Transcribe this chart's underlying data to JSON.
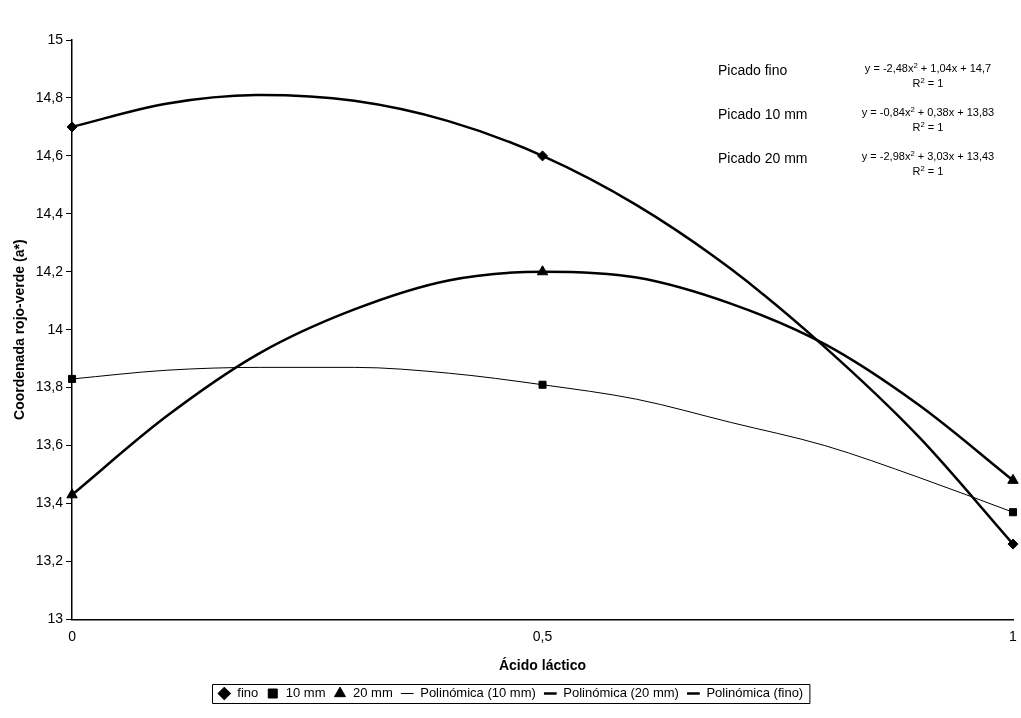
{
  "chart_data": {
    "type": "scatter",
    "xlabel": "Ácido láctico",
    "ylabel": "Coordenada rojo-verde (a*)",
    "xlim": [
      0,
      1
    ],
    "xticks": [
      {
        "value": 0,
        "label": "0"
      },
      {
        "value": 0.5,
        "label": "0,5"
      },
      {
        "value": 1,
        "label": "1"
      }
    ],
    "ylim": [
      13,
      15
    ],
    "yticks": [
      {
        "value": 13,
        "label": "13"
      },
      {
        "value": 13.2,
        "label": "13,2"
      },
      {
        "value": 13.4,
        "label": "13,4"
      },
      {
        "value": 13.6,
        "label": "13,6"
      },
      {
        "value": 13.8,
        "label": "13,8"
      },
      {
        "value": 14,
        "label": "14"
      },
      {
        "value": 14.2,
        "label": "14,2"
      },
      {
        "value": 14.4,
        "label": "14,4"
      },
      {
        "value": 14.6,
        "label": "14,6"
      },
      {
        "value": 14.8,
        "label": "14,8"
      },
      {
        "value": 15,
        "label": "15"
      }
    ],
    "grid": false,
    "legend": "bottom",
    "x": [
      0,
      0.5,
      1
    ],
    "series": [
      {
        "name": "fino",
        "marker": "diamond",
        "color": "#000000",
        "values": [
          14.7,
          14.6,
          13.26
        ]
      },
      {
        "name": "10 mm",
        "marker": "square",
        "color": "#000000",
        "values": [
          13.83,
          13.81,
          13.37
        ]
      },
      {
        "name": "20 mm",
        "marker": "triangle",
        "color": "#000000",
        "values": [
          13.43,
          14.2,
          13.48
        ]
      },
      {
        "name": "Polinómica (10 mm)",
        "type": "line",
        "marker": "none",
        "color": "#000000",
        "x": [
          0,
          0.1,
          0.2,
          0.3,
          0.4,
          0.5,
          0.6,
          0.7,
          0.8,
          0.9,
          1
        ],
        "values": [
          13.83,
          13.86,
          13.87,
          13.87,
          13.85,
          13.81,
          13.76,
          13.68,
          13.6,
          13.49,
          13.37
        ]
      },
      {
        "name": "Polinómica (20 mm)",
        "type": "line",
        "marker": "none",
        "color": "#000000",
        "x": [
          0,
          0.1,
          0.2,
          0.3,
          0.4,
          0.5,
          0.6,
          0.7,
          0.8,
          0.9,
          1
        ],
        "values": [
          13.43,
          13.7,
          13.92,
          14.07,
          14.17,
          14.2,
          14.18,
          14.09,
          13.95,
          13.74,
          13.48
        ]
      },
      {
        "name": "Polinómica (fino)",
        "type": "line",
        "marker": "none",
        "color": "#000000",
        "x": [
          0,
          0.1,
          0.2,
          0.3,
          0.4,
          0.5,
          0.6,
          0.7,
          0.8,
          0.9,
          1
        ],
        "values": [
          14.7,
          14.78,
          14.81,
          14.79,
          14.72,
          14.6,
          14.43,
          14.21,
          13.94,
          13.63,
          13.26
        ]
      }
    ],
    "annotations": [
      "Picado fino",
      "y = -2,48x$^{2}$ + 1,04x + 14,7",
      "R$^{2}$ = 1",
      "Picado 10 mm",
      "y = -0,84x$^{2}$ + 0,38x + 13,83",
      "R$^{2}$ = 1",
      "Picado 20 mm",
      "y = -2,98x$^{2}$ + 3,03x + 13,43",
      "R$^{2}$ = 1"
    ]
  }
}
